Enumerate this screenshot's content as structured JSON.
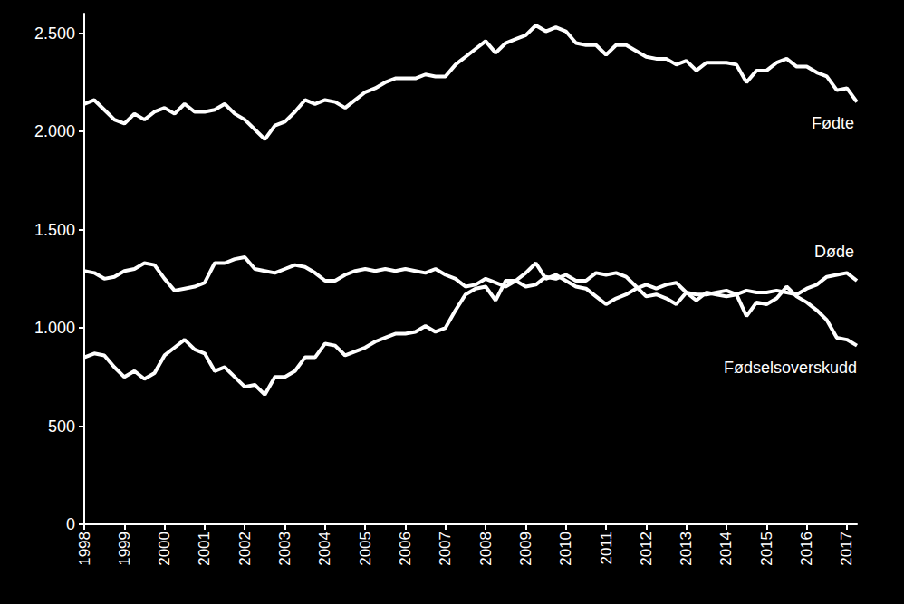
{
  "chart_data": {
    "type": "line",
    "categories": [
      "1998",
      null,
      null,
      null,
      "1999",
      null,
      null,
      null,
      "2000",
      null,
      null,
      null,
      "2001",
      null,
      null,
      null,
      "2002",
      null,
      null,
      null,
      "2003",
      null,
      null,
      null,
      "2004",
      null,
      null,
      null,
      "2005",
      null,
      null,
      null,
      "2006",
      null,
      null,
      null,
      "2007",
      null,
      null,
      null,
      "2008",
      null,
      null,
      null,
      "2009",
      null,
      null,
      null,
      "2010",
      null,
      null,
      null,
      "2011",
      null,
      null,
      null,
      "2012",
      null,
      null,
      null,
      "2013",
      null,
      null,
      null,
      "2014",
      null,
      null,
      null,
      "2015",
      null,
      null,
      null,
      "2016",
      null,
      null,
      null,
      "2017",
      null
    ],
    "series": [
      {
        "name": "Fødte",
        "color": "#ffffff",
        "values": [
          2140,
          2160,
          2110,
          2060,
          2040,
          2090,
          2060,
          2100,
          2120,
          2090,
          2140,
          2100,
          2100,
          2110,
          2140,
          2090,
          2060,
          2010,
          1960,
          2030,
          2050,
          2100,
          2160,
          2140,
          2160,
          2150,
          2120,
          2160,
          2200,
          2220,
          2250,
          2270,
          2270,
          2270,
          2290,
          2280,
          2280,
          2340,
          2380,
          2420,
          2460,
          2400,
          2450,
          2470,
          2490,
          2540,
          2510,
          2530,
          2510,
          2450,
          2440,
          2440,
          2390,
          2440,
          2440,
          2410,
          2380,
          2370,
          2370,
          2340,
          2360,
          2310,
          2350,
          2350,
          2350,
          2340,
          2250,
          2310,
          2310,
          2350,
          2370,
          2330,
          2330,
          2300,
          2280,
          2210,
          2220,
          2150
        ]
      },
      {
        "name": "Døde",
        "color": "#ffffff",
        "values": [
          1290,
          1280,
          1250,
          1260,
          1290,
          1300,
          1330,
          1320,
          1250,
          1190,
          1200,
          1210,
          1230,
          1330,
          1330,
          1350,
          1360,
          1300,
          1290,
          1280,
          1300,
          1320,
          1310,
          1280,
          1240,
          1240,
          1270,
          1290,
          1300,
          1290,
          1300,
          1290,
          1300,
          1290,
          1280,
          1300,
          1270,
          1250,
          1210,
          1220,
          1250,
          1230,
          1210,
          1240,
          1210,
          1220,
          1260,
          1250,
          1270,
          1240,
          1240,
          1280,
          1270,
          1280,
          1260,
          1210,
          1160,
          1170,
          1150,
          1120,
          1180,
          1140,
          1180,
          1170,
          1160,
          1170,
          1190,
          1180,
          1180,
          1190,
          1180,
          1170,
          1200,
          1220,
          1260,
          1270,
          1280,
          1240
        ]
      },
      {
        "name": "Fødselsoverskudd",
        "color": "#ffffff",
        "values": [
          850,
          870,
          860,
          800,
          750,
          780,
          740,
          770,
          860,
          900,
          940,
          890,
          870,
          780,
          800,
          750,
          700,
          710,
          660,
          750,
          750,
          780,
          850,
          850,
          920,
          910,
          860,
          880,
          900,
          930,
          950,
          970,
          970,
          980,
          1010,
          980,
          1000,
          1090,
          1170,
          1200,
          1210,
          1140,
          1240,
          1240,
          1280,
          1330,
          1250,
          1270,
          1240,
          1210,
          1200,
          1160,
          1120,
          1150,
          1170,
          1200,
          1220,
          1200,
          1220,
          1230,
          1180,
          1170,
          1170,
          1180,
          1190,
          1170,
          1060,
          1130,
          1120,
          1150,
          1210,
          1160,
          1130,
          1090,
          1040,
          950,
          940,
          910
        ]
      }
    ],
    "ylim": [
      0,
      2600
    ],
    "yticks": [
      0,
      500,
      {
        "value": 1000,
        "label": "1.000"
      },
      {
        "value": 1500,
        "label": "1.500"
      },
      {
        "value": 2000,
        "label": "2.000"
      },
      {
        "value": 2500,
        "label": "2.500"
      }
    ],
    "grid": false
  }
}
